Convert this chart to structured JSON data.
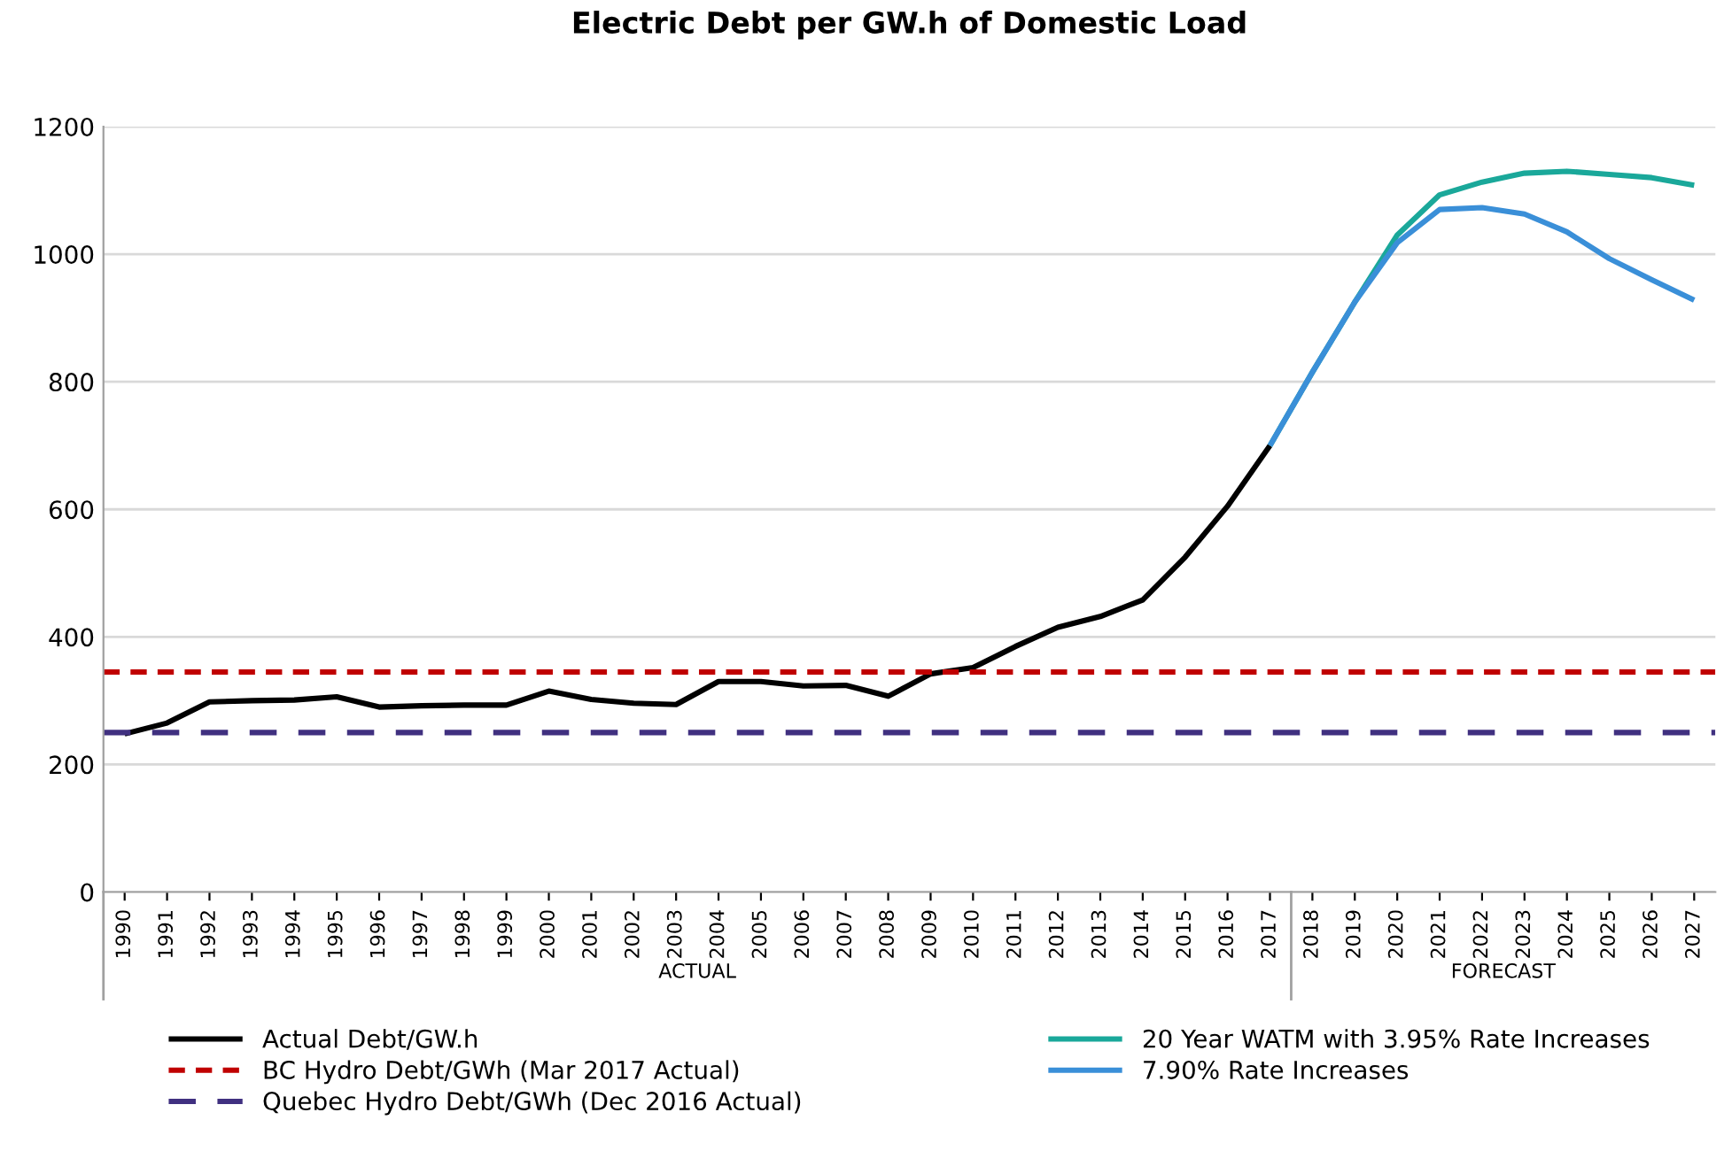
{
  "chart_data": {
    "type": "line",
    "title": "Electric Debt per GW.h of Domestic Load",
    "categories": [
      "1990",
      "1991",
      "1992",
      "1993",
      "1994",
      "1995",
      "1996",
      "1997",
      "1998",
      "1999",
      "2000",
      "2001",
      "2002",
      "2003",
      "2004",
      "2005",
      "2006",
      "2007",
      "2008",
      "2009",
      "2010",
      "2011",
      "2012",
      "2013",
      "2014",
      "2015",
      "2016",
      "2017",
      "2018",
      "2019",
      "2020",
      "2021",
      "2022",
      "2023",
      "2024",
      "2025",
      "2026",
      "2027"
    ],
    "series": [
      {
        "name": "Actual Debt/GW.h",
        "color": "#000000",
        "values": [
          248,
          265,
          298,
          300,
          301,
          306,
          290,
          292,
          293,
          293,
          315,
          302,
          296,
          294,
          330,
          330,
          323,
          324,
          307,
          342,
          352,
          385,
          415,
          432,
          458,
          525,
          605,
          700,
          null,
          null,
          null,
          null,
          null,
          null,
          null,
          null,
          null,
          null
        ]
      },
      {
        "name": "20 Year WATM with 3.95% Rate Increases",
        "color": "#1aa89a",
        "values": [
          null,
          null,
          null,
          null,
          null,
          null,
          null,
          null,
          null,
          null,
          null,
          null,
          null,
          null,
          null,
          null,
          null,
          null,
          null,
          null,
          null,
          null,
          null,
          null,
          null,
          null,
          null,
          700,
          815,
          925,
          1030,
          1093,
          1113,
          1127,
          1130,
          1125,
          1120,
          1108
        ]
      },
      {
        "name": "7.90% Rate Increases",
        "color": "#3a8fd8",
        "values": [
          null,
          null,
          null,
          null,
          null,
          null,
          null,
          null,
          null,
          null,
          null,
          null,
          null,
          null,
          null,
          null,
          null,
          null,
          null,
          null,
          null,
          null,
          null,
          null,
          null,
          null,
          null,
          700,
          815,
          925,
          1018,
          1070,
          1073,
          1063,
          1035,
          993,
          960,
          928
        ]
      }
    ],
    "ref_lines": [
      {
        "axis": "y",
        "value": 345,
        "label": "BC Hydro Debt/GWh (Mar 2017 Actual)",
        "color": "#c00000",
        "line_style": "dotted"
      },
      {
        "axis": "y",
        "value": 250,
        "label": "Quebec Hydro Debt/GWh (Dec 2016 Actual)",
        "color": "#403080",
        "line_style": "dashed"
      }
    ],
    "annotations": [
      "ACTUAL",
      "FORECAST"
    ],
    "ylim": [
      0,
      1200
    ],
    "yticks": [
      0,
      200,
      400,
      600,
      800,
      1000,
      1200
    ],
    "grid": "y",
    "legend": "bottom",
    "marker": "none",
    "line_style": "solid"
  }
}
